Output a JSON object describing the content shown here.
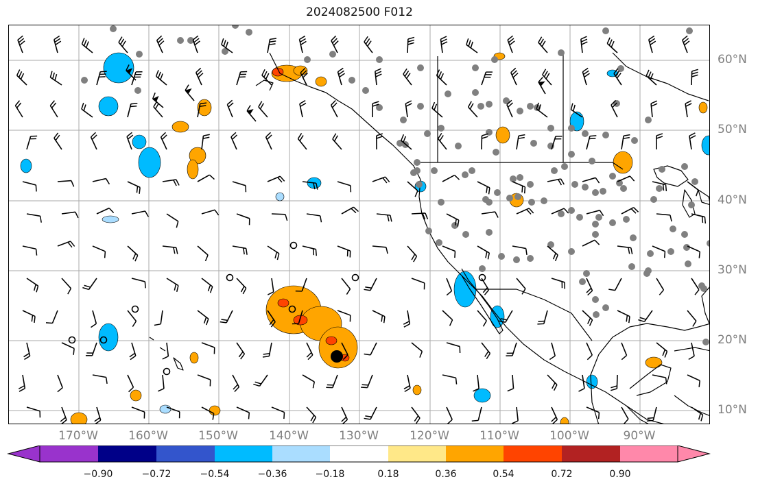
{
  "title": "2024082500 F012",
  "lon_labels": [
    "170°W",
    "160°W",
    "150°W",
    "140°W",
    "130°W",
    "120°W",
    "110°W",
    "100°W",
    "90°W"
  ],
  "lat_labels": [
    "60°N",
    "50°N",
    "40°N",
    "30°N",
    "20°N",
    "10°N"
  ],
  "colorbar": {
    "ticks": [
      "−0.90",
      "−0.72",
      "−0.54",
      "−0.36",
      "−0.18",
      "0.18",
      "0.36",
      "0.54",
      "0.72",
      "0.90"
    ],
    "colors": {
      "below": "#9933cc",
      "bins": [
        "#000088",
        "#3355cc",
        "#00bbff",
        "#aaddff",
        "#ffffff",
        "#ffe888",
        "#ffa500",
        "#ff4400",
        "#b22222",
        "#ff88aa"
      ]
    }
  },
  "colors": {
    "positive_fill": "#ffa500",
    "positive_core": "#ff4400",
    "negative_fill": "#00bbff",
    "negative_light": "#aaddff",
    "grid": "#aaaaaa",
    "station_dot": "#808080"
  },
  "map": {
    "projection": "PlateCarree",
    "lon_range": [
      -178,
      -78
    ],
    "lat_range": [
      8,
      65
    ],
    "gridlines": true,
    "wind_barbs": true,
    "cyclone_markers": true
  }
}
